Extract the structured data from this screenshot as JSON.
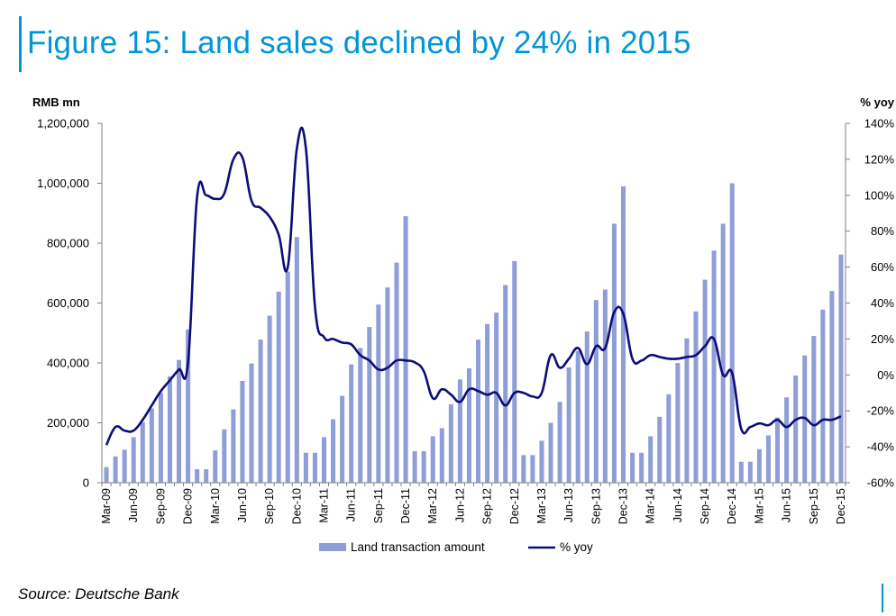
{
  "title": "Figure 15: Land sales declined by 24% in 2015",
  "source": "Source: Deutsche Bank",
  "colors": {
    "title": "#0096d6",
    "bars": "#8f9ed6",
    "line": "#0d0d7a",
    "axis": "#808080"
  },
  "chart_data": {
    "type": "bar+line",
    "left_axis_title": "RMB mn",
    "right_axis_title": "% yoy",
    "y_left_ticks": [
      "1,200,000",
      "1,000,000",
      "800,000",
      "600,000",
      "400,000",
      "200,000",
      "0"
    ],
    "y_left_range": [
      0,
      1200000
    ],
    "y_right_ticks": [
      "140%",
      "120%",
      "100%",
      "80%",
      "60%",
      "40%",
      "20%",
      "0%",
      "-20%",
      "-40%",
      "-60%"
    ],
    "y_right_range": [
      -60,
      140
    ],
    "x_tick_labels": [
      "Mar-09",
      "Jun-09",
      "Sep-09",
      "Dec-09",
      "Mar-10",
      "Jun-10",
      "Sep-10",
      "Dec-10",
      "Mar-11",
      "Jun-11",
      "Sep-11",
      "Dec-11",
      "Mar-12",
      "Jun-12",
      "Sep-12",
      "Dec-12",
      "Mar-13",
      "Jun-13",
      "Sep-13",
      "Dec-13",
      "Mar-14",
      "Jun-14",
      "Sep-14",
      "Dec-14",
      "Mar-15",
      "Jun-15",
      "Sep-15",
      "Dec-15"
    ],
    "months": [
      "Mar-09",
      "Apr-09",
      "May-09",
      "Jun-09",
      "Jul-09",
      "Aug-09",
      "Sep-09",
      "Oct-09",
      "Nov-09",
      "Dec-09",
      "Jan-10",
      "Feb-10",
      "Mar-10",
      "Apr-10",
      "May-10",
      "Jun-10",
      "Jul-10",
      "Aug-10",
      "Sep-10",
      "Oct-10",
      "Nov-10",
      "Dec-10",
      "Jan-11",
      "Feb-11",
      "Mar-11",
      "Apr-11",
      "May-11",
      "Jun-11",
      "Jul-11",
      "Aug-11",
      "Sep-11",
      "Oct-11",
      "Nov-11",
      "Dec-11",
      "Jan-12",
      "Feb-12",
      "Mar-12",
      "Apr-12",
      "May-12",
      "Jun-12",
      "Jul-12",
      "Aug-12",
      "Sep-12",
      "Oct-12",
      "Nov-12",
      "Dec-12",
      "Jan-13",
      "Feb-13",
      "Mar-13",
      "Apr-13",
      "May-13",
      "Jun-13",
      "Jul-13",
      "Aug-13",
      "Sep-13",
      "Oct-13",
      "Nov-13",
      "Dec-13",
      "Jan-14",
      "Feb-14",
      "Mar-14",
      "Apr-14",
      "May-14",
      "Jun-14",
      "Jul-14",
      "Aug-14",
      "Sep-14",
      "Oct-14",
      "Nov-14",
      "Dec-14",
      "Jan-15",
      "Feb-15",
      "Mar-15",
      "Apr-15",
      "May-15",
      "Jun-15",
      "Jul-15",
      "Aug-15",
      "Sep-15",
      "Oct-15",
      "Nov-15",
      "Dec-15"
    ],
    "series": [
      {
        "name": "Land transaction amount",
        "type": "bar",
        "axis": "left",
        "values": [
          52000,
          88000,
          110000,
          152000,
          202000,
          248000,
          300000,
          355000,
          410000,
          512000,
          45000,
          45000,
          108000,
          178000,
          245000,
          340000,
          398000,
          478000,
          558000,
          638000,
          705000,
          820000,
          100000,
          100000,
          152000,
          212000,
          290000,
          395000,
          450000,
          520000,
          595000,
          652000,
          735000,
          890000,
          105000,
          105000,
          155000,
          182000,
          262000,
          345000,
          382000,
          478000,
          530000,
          568000,
          660000,
          740000,
          92000,
          92000,
          140000,
          200000,
          270000,
          385000,
          440000,
          505000,
          610000,
          645000,
          865000,
          990000,
          100000,
          100000,
          155000,
          220000,
          295000,
          400000,
          482000,
          572000,
          678000,
          775000,
          865000,
          1000000,
          70000,
          70000,
          112000,
          158000,
          218000,
          285000,
          358000,
          425000,
          490000,
          578000,
          640000,
          762000
        ]
      },
      {
        "name": "% yoy",
        "type": "line",
        "axis": "right",
        "values": [
          -39,
          -29,
          -31,
          -31,
          -25,
          -17,
          -9,
          -3,
          3,
          7,
          99,
          100,
          98,
          101,
          120,
          121,
          97,
          93,
          88,
          78,
          60,
          126,
          126,
          38,
          21,
          20,
          18,
          17,
          11,
          8,
          3,
          4,
          8,
          8,
          7,
          2,
          -13,
          -8,
          -11,
          -15,
          -8,
          -9,
          -11,
          -10,
          -17,
          -10,
          -10,
          -12,
          -10,
          11,
          4,
          9,
          15,
          6,
          16,
          15,
          35,
          34,
          9,
          8,
          11,
          10,
          9,
          9,
          10,
          11,
          16,
          20,
          0,
          1,
          -30,
          -29,
          -27,
          -28,
          -25,
          -29,
          -25,
          -24,
          -28,
          -25,
          -25,
          -23
        ]
      }
    ],
    "legend": [
      "Land transaction amount",
      "% yoy"
    ],
    "legend_position": "bottom"
  }
}
